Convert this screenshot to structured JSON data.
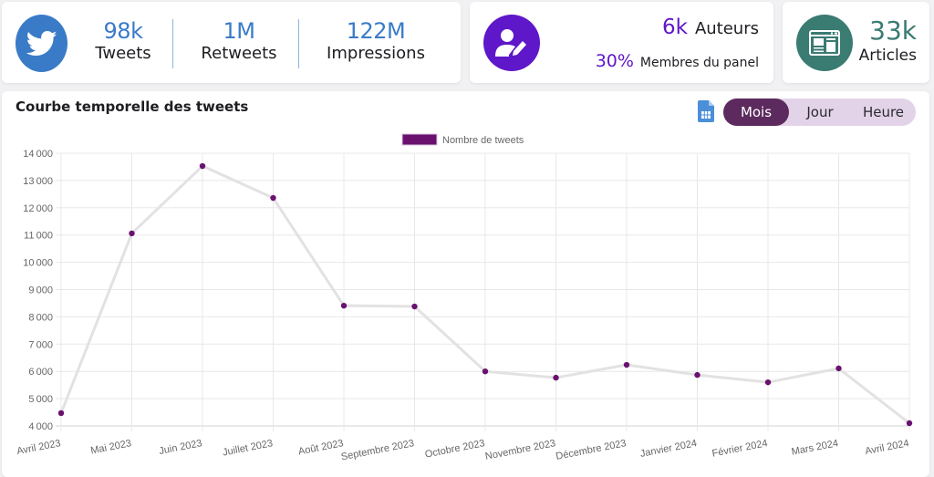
{
  "stats_card": {
    "icon": "twitter-bird-icon",
    "icon_color": "#3a7bc8",
    "items": [
      {
        "value": "98k",
        "label": "Tweets"
      },
      {
        "value": "1M",
        "label": "Retweets"
      },
      {
        "value": "122M",
        "label": "Impressions"
      }
    ]
  },
  "authors_card": {
    "icon": "user-edit-icon",
    "icon_color": "#5e17c9",
    "authors_value": "6k",
    "authors_label": "Auteurs",
    "panel_value": "30%",
    "panel_label": "Membres du panel"
  },
  "articles_card": {
    "icon": "newspaper-icon",
    "icon_color": "#3a7b72",
    "value": "33k",
    "label": "Articles"
  },
  "chart_panel": {
    "title": "Courbe temporelle des tweets",
    "export_icon": "spreadsheet-file-icon",
    "toggle": {
      "options": [
        "Mois",
        "Jour",
        "Heure"
      ],
      "selected": "Mois"
    }
  },
  "chart_data": {
    "type": "line",
    "title": "",
    "xlabel": "",
    "ylabel": "",
    "legend": {
      "position": "top",
      "entries": [
        {
          "name": "Nombre de tweets",
          "color": "#6a1170"
        }
      ]
    },
    "categories": [
      "Avril 2023",
      "Mai 2023",
      "Juin 2023",
      "Juillet 2023",
      "Août 2023",
      "Septembre 2023",
      "Octobre 2023",
      "Novembre 2023",
      "Décembre 2023",
      "Janvier 2024",
      "Février 2024",
      "Mars 2024",
      "Avril 2024"
    ],
    "series": [
      {
        "name": "Nombre de tweets",
        "values": [
          4470,
          11060,
          13530,
          12360,
          8410,
          8380,
          6000,
          5770,
          6240,
          5870,
          5600,
          6110,
          4100
        ],
        "line_color": "#e2e2e2",
        "point_color": "#6a1170"
      }
    ],
    "ylim": [
      4000,
      14000
    ],
    "yticks": [
      4000,
      5000,
      6000,
      7000,
      8000,
      9000,
      10000,
      11000,
      12000,
      13000,
      14000
    ],
    "ytick_labels": [
      "4000",
      "5000",
      "6000",
      "7000",
      "8000",
      "9000",
      "10000",
      "11000",
      "12000",
      "13000",
      "14000"
    ],
    "grid": true
  }
}
